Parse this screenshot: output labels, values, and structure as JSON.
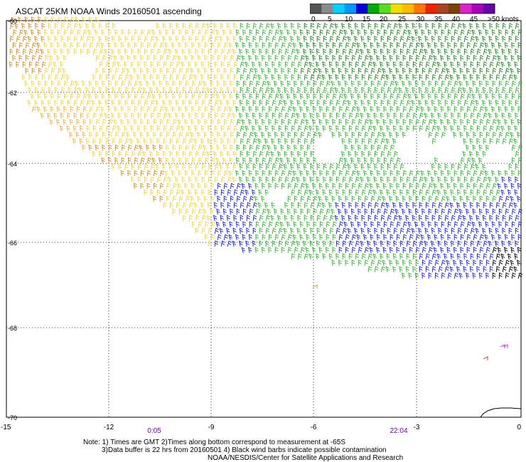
{
  "title": "ASCAT 25KM NOAA Winds 20160501 ascending",
  "scale": {
    "labels": [
      "0",
      "5",
      "10",
      "15",
      "20",
      "25",
      "30",
      "35",
      "40",
      "45",
      ">50 knots"
    ],
    "colors": [
      "#555555",
      "#8a8a8a",
      "#00cfff",
      "#0099ff",
      "#0000dd",
      "#00aa00",
      "#55dd22",
      "#eedd00",
      "#ffbb00",
      "#ff7700",
      "#ee2200",
      "#aa4422",
      "#774400",
      "#dd22cc",
      "#aa00bb",
      "#6a00aa"
    ]
  },
  "axes": {
    "x_ticks": [
      "-15",
      "-12",
      "-9",
      "-6",
      "-3",
      "0"
    ],
    "y_ticks": [
      "-60",
      "-62",
      "-64",
      "-66",
      "-68",
      "-70"
    ]
  },
  "times": [
    "0:05",
    "22:04"
  ],
  "notes": {
    "line1": "Note: 1) Times are GMT 2)Times along bottom correspond to measurement at -65S",
    "line2": "3)Data buffer is 22 hrs from 20160501 4) Black wind barbs indicate possible contamination",
    "line3": "NOAA/NESDIS/Center for Satellite Applications and Research"
  }
}
